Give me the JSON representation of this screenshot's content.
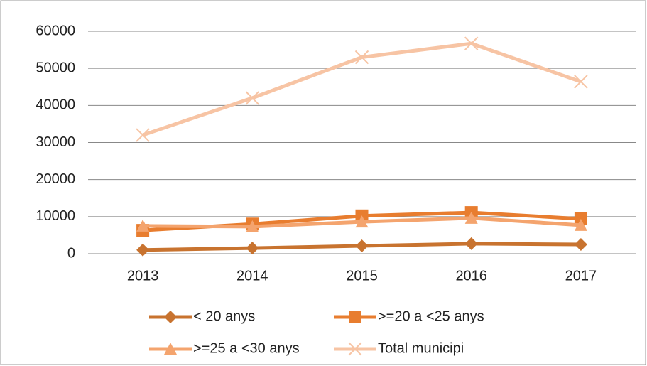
{
  "chart_data": {
    "type": "line",
    "categories": [
      "2013",
      "2014",
      "2015",
      "2016",
      "2017"
    ],
    "series": [
      {
        "name": "< 20 anys",
        "color": "#c8732f",
        "marker": "diamond",
        "values": [
          1000,
          1500,
          2100,
          2700,
          2500
        ]
      },
      {
        "name": ">=20 a <25 anys",
        "color": "#e87d2f",
        "marker": "square",
        "values": [
          6300,
          8000,
          10200,
          11100,
          9400
        ]
      },
      {
        "name": ">=25 a <30 anys",
        "color": "#f4a46e",
        "marker": "triangle",
        "values": [
          7500,
          7300,
          8600,
          9600,
          7700
        ]
      },
      {
        "name": "Total municipi",
        "color": "#f7c4a4",
        "marker": "x",
        "values": [
          32000,
          42000,
          53000,
          56700,
          46400
        ]
      }
    ],
    "ylim": [
      0,
      60000
    ],
    "yticks": [
      0,
      10000,
      20000,
      30000,
      40000,
      50000,
      60000
    ],
    "grid": true,
    "legend": "bottom"
  }
}
